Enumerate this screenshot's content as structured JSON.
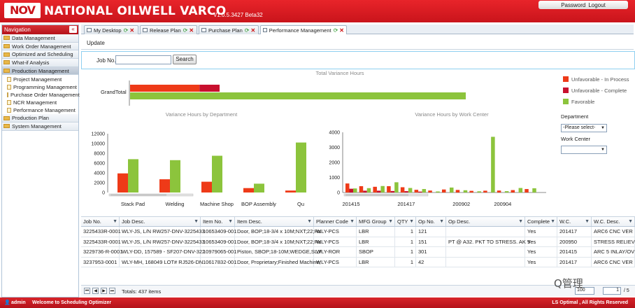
{
  "header": {
    "logo_text": "NOV",
    "brand": "NATIONAL OILWELL VARCO",
    "version": "V1.0.5.3427 Beta32",
    "password_label": "Password",
    "logout_label": "Logout"
  },
  "nav": {
    "title": "Navigation",
    "collapse_label": "«",
    "items": [
      {
        "label": "Data Management",
        "active": false
      },
      {
        "label": "Work Order Management",
        "active": false
      },
      {
        "label": "Optimized and Scheduling",
        "active": false
      },
      {
        "label": "What-if Analysis",
        "active": false
      },
      {
        "label": "Production Management",
        "active": true
      },
      {
        "label": "Project Management",
        "sub": true
      },
      {
        "label": "Programming Management",
        "sub": true
      },
      {
        "label": "Purchase Order Management",
        "sub": true
      },
      {
        "label": "NCR Management",
        "sub": true
      },
      {
        "label": "Performance Management",
        "sub": true
      },
      {
        "label": "Production Plan",
        "active": false
      },
      {
        "label": "System Management",
        "active": false
      }
    ]
  },
  "tabs": [
    {
      "label": "My Desktop"
    },
    {
      "label": "Release Plan"
    },
    {
      "label": "Purchase Plan"
    },
    {
      "label": "Performance Management"
    }
  ],
  "toolbar": {
    "update_label": "Update"
  },
  "search": {
    "job_label": "Job No.",
    "job_value": "",
    "button_label": "Search"
  },
  "legend": [
    {
      "label": "Unfavorable - In Process",
      "color": "#ee3a18"
    },
    {
      "label": "Unfavorable - Complete",
      "color": "#c8102e"
    },
    {
      "label": "Favorable",
      "color": "#8cc43c"
    }
  ],
  "filters": {
    "department_label": "Department",
    "department_value": "-Please select-",
    "workcenter_label": "Work Center",
    "workcenter_value": ""
  },
  "chart_data": [
    {
      "type": "bar",
      "title": "Total Variance Hours",
      "categories": [
        "GrandTotal"
      ],
      "series": [
        {
          "name": "Unfavorable - In Process",
          "values": [
            6200
          ]
        },
        {
          "name": "Unfavorable - Complete",
          "values": [
            1800
          ]
        },
        {
          "name": "Favorable",
          "values": [
            30000
          ]
        }
      ],
      "orientation": "horizontal"
    },
    {
      "type": "bar",
      "title": "Variance Hours by Department",
      "categories": [
        "Stack Pad",
        "Welding",
        "Machine Shop",
        "BOP Assembly",
        "Qu"
      ],
      "series": [
        {
          "name": "Unfavorable - In Process",
          "values": [
            3900,
            2700,
            2200,
            900,
            400
          ]
        },
        {
          "name": "Favorable",
          "values": [
            6800,
            6600,
            7500,
            1800,
            10200
          ]
        }
      ],
      "yticks": [
        "12000",
        "10000",
        "8000",
        "6000",
        "4000",
        "2000",
        "0"
      ],
      "ylim": [
        0,
        12000
      ]
    },
    {
      "type": "bar",
      "title": "Variance Hours by Work Center",
      "categories": [
        "201415",
        "",
        "",
        "",
        "201417",
        "",
        "",
        "",
        "200902",
        "",
        "",
        "200904",
        "",
        ""
      ],
      "tick_labels": [
        "201415",
        "201417",
        "200902",
        "200904"
      ],
      "series": [
        {
          "name": "Unfavorable - In Process",
          "values": [
            600,
            420,
            380,
            420,
            350,
            180,
            130,
            200,
            170,
            110,
            120,
            130,
            160,
            230
          ]
        },
        {
          "name": "Unfavorable - Complete",
          "values": [
            250,
            120,
            120,
            100,
            90,
            60,
            0,
            0,
            0,
            0,
            0,
            0,
            0,
            0
          ]
        },
        {
          "name": "Favorable",
          "values": [
            270,
            290,
            430,
            680,
            300,
            230,
            70,
            330,
            150,
            80,
            3700,
            90,
            300,
            280
          ]
        }
      ],
      "yticks": [
        "4000",
        "3000",
        "2000",
        "1000",
        "0"
      ],
      "ylim": [
        0,
        4000
      ]
    }
  ],
  "grid": {
    "columns": [
      "Job No.",
      "Job Desc.",
      "Item No.",
      "Item Desc.",
      "Planner Code",
      "MFG Group",
      "QTY",
      "Op No.",
      "Op Desc.",
      "Complete",
      "W.C.",
      "W.C. Desc."
    ],
    "rows": [
      [
        "3225433R-0001",
        "WLY-JS, L/N RW257-DNV-3225433",
        "10653409-001",
        "Door, BOP;18-3/4 x 10M;NXT;22;Ra",
        "WLY-PCS",
        "LBR",
        "1",
        "121",
        "",
        "Yes",
        "201417",
        "ARC6 CNC VER"
      ],
      [
        "3225433R-0001",
        "WLY-JS, L/N RW257-DNV-3225433",
        "10653409-001",
        "Door, BOP;18-3/4 x 10M;NXT;22;Ra",
        "WLY-PCS",
        "LBR",
        "1",
        "151",
        "PT @ A32. PKT TO STRESS. AK 9",
        "Yes",
        "200950",
        "STRESS RELIEV"
      ],
      [
        "3229736-R-0001",
        "WLY-DD, 157589 - SF207-DNV-322",
        "10979065-001",
        "Piston, SBOP;18-10M;WEDGE,SL;F",
        "WLY-ROR",
        "SBOP",
        "1",
        "301",
        "",
        "Yes",
        "201415",
        "ARC 5 INLAY/OV"
      ],
      [
        "3237953-0001",
        "WLY-MH, 168049 LOT# RJ526-DN",
        "10617832-001",
        "Door, Proprietary;Finished Machine;",
        "WLY-PCS",
        "LBR",
        "1",
        "42",
        "",
        "Yes",
        "201417",
        "ARC6 CNC VER"
      ]
    ]
  },
  "pager": {
    "total_label": "Totals: 437 items",
    "page_size": "100",
    "page": "1",
    "of_pages": "/ 5"
  },
  "footer": {
    "user": "admin",
    "welcome": "Welcome to Scheduling Optimizer",
    "copyright": "LS Optimal , All Rights Reserved",
    "watermark": "Q管理"
  }
}
